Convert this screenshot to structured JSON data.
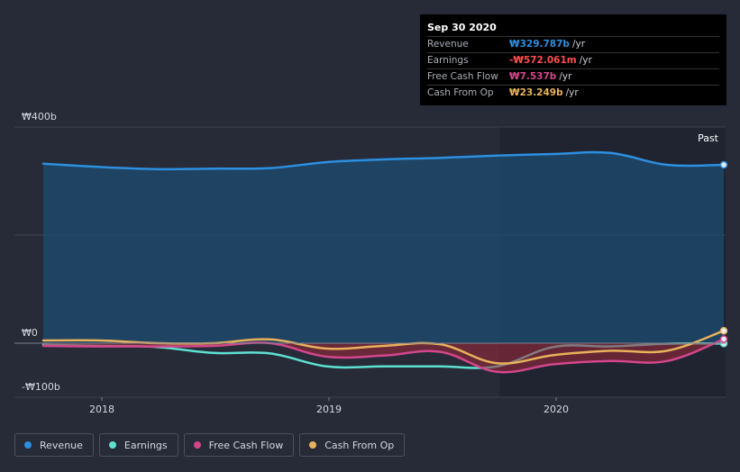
{
  "colors": {
    "revenue": "#2d8fe0",
    "earnings": "#5ee0d0",
    "free_cash_flow": "#d4468c",
    "cash_from_op": "#e8b25a",
    "negative_value": "#ff4d4d"
  },
  "tooltip": {
    "date": "Sep 30 2020",
    "rows": [
      {
        "label": "Revenue",
        "value": "₩329.787b",
        "unit": "/yr"
      },
      {
        "label": "Earnings",
        "value": "-₩572.061m",
        "unit": "/yr"
      },
      {
        "label": "Free Cash Flow",
        "value": "₩7.537b",
        "unit": "/yr"
      },
      {
        "label": "Cash From Op",
        "value": "₩23.249b",
        "unit": "/yr"
      }
    ]
  },
  "legend": [
    {
      "label": "Revenue"
    },
    {
      "label": "Earnings"
    },
    {
      "label": "Free Cash Flow"
    },
    {
      "label": "Cash From Op"
    }
  ],
  "chart_data": {
    "type": "area",
    "title": "",
    "past_label": "Past",
    "y_unit": "₩ billions",
    "ylim": [
      -100,
      400
    ],
    "xlim": [
      2017.7,
      2020.75
    ],
    "past_region_start": 2019.75,
    "y_ticks": [
      {
        "value": 400,
        "label": "₩400b"
      },
      {
        "value": 0,
        "label": "₩0"
      },
      {
        "value": -100,
        "label": "-₩100b"
      }
    ],
    "x_ticks": [
      {
        "value": 2018,
        "label": "2018"
      },
      {
        "value": 2019,
        "label": "2019"
      },
      {
        "value": 2020,
        "label": "2020"
      }
    ],
    "series": [
      {
        "name": "Revenue",
        "color_key": "revenue",
        "area": true,
        "x": [
          2017.75,
          2018.0,
          2018.25,
          2018.5,
          2018.75,
          2019.0,
          2019.25,
          2019.5,
          2019.75,
          2020.0,
          2020.25,
          2020.5,
          2020.75
        ],
        "y": [
          332,
          326,
          322,
          323,
          324,
          335,
          340,
          343,
          347,
          350,
          352,
          330,
          330
        ]
      },
      {
        "name": "Earnings",
        "color_key": "earnings",
        "x": [
          2017.75,
          2018.0,
          2018.25,
          2018.5,
          2018.75,
          2019.0,
          2019.25,
          2019.5,
          2019.75,
          2020.0,
          2020.25,
          2020.5,
          2020.75
        ],
        "y": [
          -3,
          -5,
          -7,
          -18,
          -19,
          -43,
          -43,
          -43,
          -43,
          -7,
          -6,
          -1,
          -0.6
        ]
      },
      {
        "name": "Free Cash Flow",
        "color_key": "free_cash_flow",
        "x": [
          2017.75,
          2018.0,
          2018.25,
          2018.5,
          2018.75,
          2019.0,
          2019.25,
          2019.5,
          2019.75,
          2020.0,
          2020.25,
          2020.5,
          2020.75
        ],
        "y": [
          -5,
          -6,
          -6,
          -5,
          0,
          -25,
          -23,
          -16,
          -53,
          -39,
          -33,
          -33,
          7.5
        ]
      },
      {
        "name": "Cash From Op",
        "color_key": "cash_from_op",
        "x": [
          2017.75,
          2018.0,
          2018.25,
          2018.5,
          2018.75,
          2019.0,
          2019.25,
          2019.5,
          2019.75,
          2020.0,
          2020.25,
          2020.5,
          2020.75
        ],
        "y": [
          5,
          5,
          0,
          0,
          7,
          -10,
          -5,
          -2,
          -37,
          -22,
          -14,
          -14,
          23
        ]
      }
    ]
  }
}
